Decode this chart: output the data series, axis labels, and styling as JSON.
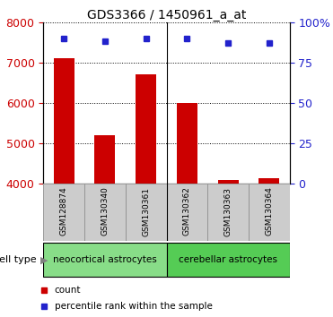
{
  "title": "GDS3366 / 1450961_a_at",
  "samples": [
    "GSM128874",
    "GSM130340",
    "GSM130361",
    "GSM130362",
    "GSM130363",
    "GSM130364"
  ],
  "counts": [
    7100,
    5200,
    6700,
    6000,
    4100,
    4150
  ],
  "percentiles": [
    90,
    88,
    90,
    90,
    87,
    87
  ],
  "ylim_left": [
    4000,
    8000
  ],
  "ylim_right": [
    0,
    100
  ],
  "yticks_left": [
    4000,
    5000,
    6000,
    7000,
    8000
  ],
  "yticks_right": [
    0,
    25,
    50,
    75,
    100
  ],
  "bar_color": "#cc0000",
  "dot_color": "#2222cc",
  "groups": [
    {
      "label": "neocortical astrocytes",
      "indices": [
        0,
        1,
        2
      ],
      "color": "#88dd88"
    },
    {
      "label": "cerebellar astrocytes",
      "indices": [
        3,
        4,
        5
      ],
      "color": "#55cc55"
    }
  ],
  "cell_type_label": "cell type",
  "legend_count_label": "count",
  "legend_percentile_label": "percentile rank within the sample",
  "tick_label_color_left": "#cc0000",
  "tick_label_color_right": "#2222cc",
  "bar_width": 0.5,
  "background_color": "#ffffff",
  "tick_area_color": "#cccccc"
}
